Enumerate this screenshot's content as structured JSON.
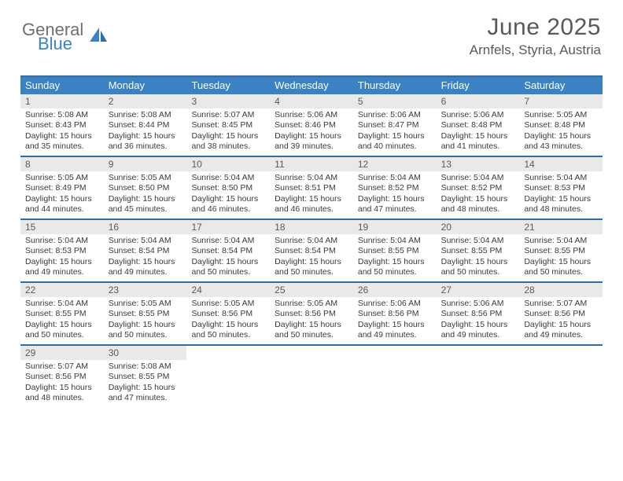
{
  "logo": {
    "word1": "General",
    "word2": "Blue"
  },
  "title": "June 2025",
  "location": "Arnfels, Styria, Austria",
  "colors": {
    "header_blue": "#3a82c4",
    "border_blue": "#2f6ea8",
    "daynum_bg": "#e9e9e9",
    "text_gray": "#595959",
    "body_text": "#3a3a3a",
    "logo_gray": "#6f6f6f",
    "logo_blue": "#3a82c4",
    "white": "#ffffff"
  },
  "typography": {
    "title_fontsize": 30,
    "location_fontsize": 17,
    "dayheader_fontsize": 13,
    "daynum_fontsize": 12,
    "body_fontsize": 10.5
  },
  "day_headers": [
    "Sunday",
    "Monday",
    "Tuesday",
    "Wednesday",
    "Thursday",
    "Friday",
    "Saturday"
  ],
  "weeks": [
    [
      {
        "n": "1",
        "sr": "5:08 AM",
        "ss": "8:43 PM",
        "dl1": "Daylight: 15 hours",
        "dl2": "and 35 minutes."
      },
      {
        "n": "2",
        "sr": "5:08 AM",
        "ss": "8:44 PM",
        "dl1": "Daylight: 15 hours",
        "dl2": "and 36 minutes."
      },
      {
        "n": "3",
        "sr": "5:07 AM",
        "ss": "8:45 PM",
        "dl1": "Daylight: 15 hours",
        "dl2": "and 38 minutes."
      },
      {
        "n": "4",
        "sr": "5:06 AM",
        "ss": "8:46 PM",
        "dl1": "Daylight: 15 hours",
        "dl2": "and 39 minutes."
      },
      {
        "n": "5",
        "sr": "5:06 AM",
        "ss": "8:47 PM",
        "dl1": "Daylight: 15 hours",
        "dl2": "and 40 minutes."
      },
      {
        "n": "6",
        "sr": "5:06 AM",
        "ss": "8:48 PM",
        "dl1": "Daylight: 15 hours",
        "dl2": "and 41 minutes."
      },
      {
        "n": "7",
        "sr": "5:05 AM",
        "ss": "8:48 PM",
        "dl1": "Daylight: 15 hours",
        "dl2": "and 43 minutes."
      }
    ],
    [
      {
        "n": "8",
        "sr": "5:05 AM",
        "ss": "8:49 PM",
        "dl1": "Daylight: 15 hours",
        "dl2": "and 44 minutes."
      },
      {
        "n": "9",
        "sr": "5:05 AM",
        "ss": "8:50 PM",
        "dl1": "Daylight: 15 hours",
        "dl2": "and 45 minutes."
      },
      {
        "n": "10",
        "sr": "5:04 AM",
        "ss": "8:50 PM",
        "dl1": "Daylight: 15 hours",
        "dl2": "and 46 minutes."
      },
      {
        "n": "11",
        "sr": "5:04 AM",
        "ss": "8:51 PM",
        "dl1": "Daylight: 15 hours",
        "dl2": "and 46 minutes."
      },
      {
        "n": "12",
        "sr": "5:04 AM",
        "ss": "8:52 PM",
        "dl1": "Daylight: 15 hours",
        "dl2": "and 47 minutes."
      },
      {
        "n": "13",
        "sr": "5:04 AM",
        "ss": "8:52 PM",
        "dl1": "Daylight: 15 hours",
        "dl2": "and 48 minutes."
      },
      {
        "n": "14",
        "sr": "5:04 AM",
        "ss": "8:53 PM",
        "dl1": "Daylight: 15 hours",
        "dl2": "and 48 minutes."
      }
    ],
    [
      {
        "n": "15",
        "sr": "5:04 AM",
        "ss": "8:53 PM",
        "dl1": "Daylight: 15 hours",
        "dl2": "and 49 minutes."
      },
      {
        "n": "16",
        "sr": "5:04 AM",
        "ss": "8:54 PM",
        "dl1": "Daylight: 15 hours",
        "dl2": "and 49 minutes."
      },
      {
        "n": "17",
        "sr": "5:04 AM",
        "ss": "8:54 PM",
        "dl1": "Daylight: 15 hours",
        "dl2": "and 50 minutes."
      },
      {
        "n": "18",
        "sr": "5:04 AM",
        "ss": "8:54 PM",
        "dl1": "Daylight: 15 hours",
        "dl2": "and 50 minutes."
      },
      {
        "n": "19",
        "sr": "5:04 AM",
        "ss": "8:55 PM",
        "dl1": "Daylight: 15 hours",
        "dl2": "and 50 minutes."
      },
      {
        "n": "20",
        "sr": "5:04 AM",
        "ss": "8:55 PM",
        "dl1": "Daylight: 15 hours",
        "dl2": "and 50 minutes."
      },
      {
        "n": "21",
        "sr": "5:04 AM",
        "ss": "8:55 PM",
        "dl1": "Daylight: 15 hours",
        "dl2": "and 50 minutes."
      }
    ],
    [
      {
        "n": "22",
        "sr": "5:04 AM",
        "ss": "8:55 PM",
        "dl1": "Daylight: 15 hours",
        "dl2": "and 50 minutes."
      },
      {
        "n": "23",
        "sr": "5:05 AM",
        "ss": "8:55 PM",
        "dl1": "Daylight: 15 hours",
        "dl2": "and 50 minutes."
      },
      {
        "n": "24",
        "sr": "5:05 AM",
        "ss": "8:56 PM",
        "dl1": "Daylight: 15 hours",
        "dl2": "and 50 minutes."
      },
      {
        "n": "25",
        "sr": "5:05 AM",
        "ss": "8:56 PM",
        "dl1": "Daylight: 15 hours",
        "dl2": "and 50 minutes."
      },
      {
        "n": "26",
        "sr": "5:06 AM",
        "ss": "8:56 PM",
        "dl1": "Daylight: 15 hours",
        "dl2": "and 49 minutes."
      },
      {
        "n": "27",
        "sr": "5:06 AM",
        "ss": "8:56 PM",
        "dl1": "Daylight: 15 hours",
        "dl2": "and 49 minutes."
      },
      {
        "n": "28",
        "sr": "5:07 AM",
        "ss": "8:56 PM",
        "dl1": "Daylight: 15 hours",
        "dl2": "and 49 minutes."
      }
    ],
    [
      {
        "n": "29",
        "sr": "5:07 AM",
        "ss": "8:56 PM",
        "dl1": "Daylight: 15 hours",
        "dl2": "and 48 minutes."
      },
      {
        "n": "30",
        "sr": "5:08 AM",
        "ss": "8:55 PM",
        "dl1": "Daylight: 15 hours",
        "dl2": "and 47 minutes."
      },
      null,
      null,
      null,
      null,
      null
    ]
  ],
  "labels": {
    "sunrise_prefix": "Sunrise: ",
    "sunset_prefix": "Sunset: "
  }
}
